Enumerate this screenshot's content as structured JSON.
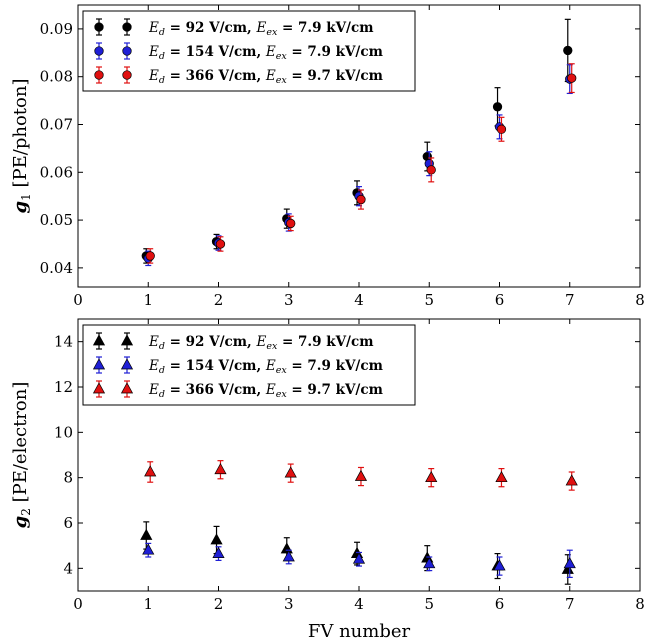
{
  "colors": {
    "series_0": "#000000",
    "series_1": "#1f1fd6",
    "series_2": "#e01010"
  },
  "chart_data": [
    {
      "type": "scatter",
      "title": "",
      "xlabel": "",
      "ylabel": "g1 [PE/photon]",
      "ylabel_parts": {
        "symbol": "g",
        "sub": "1",
        "rest": " [PE/photon]"
      },
      "xlim": [
        0,
        8
      ],
      "ylim": [
        0.036,
        0.095
      ],
      "xticks": [
        0,
        1,
        2,
        3,
        4,
        5,
        6,
        7,
        8
      ],
      "yticks": [
        0.04,
        0.05,
        0.06,
        0.07,
        0.08,
        0.09
      ],
      "ytick_labels": [
        "0.04",
        "0.05",
        "0.06",
        "0.07",
        "0.08",
        "0.09"
      ],
      "marker": "circle",
      "grid": false,
      "legend_position": "top-left",
      "x": [
        1,
        2,
        3,
        4,
        5,
        6,
        7
      ],
      "series": [
        {
          "name": "Ed = 92 V/cm, Eex = 7.9 kV/cm",
          "legend_parts": [
            "E",
            "d",
            " = 92 V/cm, ",
            "E",
            "ex",
            " = 7.9 kV/cm"
          ],
          "color": "#000000",
          "values": [
            0.0425,
            0.0455,
            0.0503,
            0.0557,
            0.0633,
            0.0737,
            0.0855
          ],
          "errors": [
            0.0015,
            0.0015,
            0.002,
            0.0025,
            0.003,
            0.004,
            0.0065
          ]
        },
        {
          "name": "Ed = 154 V/cm, Eex = 7.9 kV/cm",
          "legend_parts": [
            "E",
            "d",
            " = 154 V/cm, ",
            "E",
            "ex",
            " = 7.9 kV/cm"
          ],
          "color": "#1f1fd6",
          "values": [
            0.042,
            0.0452,
            0.0495,
            0.055,
            0.0618,
            0.0695,
            0.0795
          ],
          "errors": [
            0.0015,
            0.0015,
            0.0018,
            0.002,
            0.0025,
            0.0025,
            0.003
          ]
        },
        {
          "name": "Ed = 366 V/cm, Eex = 9.7 kV/cm",
          "legend_parts": [
            "E",
            "d",
            " = 366 V/cm, ",
            "E",
            "ex",
            " = 9.7 kV/cm"
          ],
          "color": "#e01010",
          "values": [
            0.0425,
            0.045,
            0.0493,
            0.0543,
            0.0605,
            0.069,
            0.0797
          ],
          "errors": [
            0.0015,
            0.0015,
            0.0015,
            0.002,
            0.0025,
            0.0025,
            0.003
          ]
        }
      ]
    },
    {
      "type": "scatter",
      "title": "",
      "xlabel": "FV number",
      "ylabel": "g2 [PE/electron]",
      "ylabel_parts": {
        "symbol": "g",
        "sub": "2",
        "rest": " [PE/electron]"
      },
      "xlim": [
        0,
        8
      ],
      "ylim": [
        3,
        15
      ],
      "xticks": [
        0,
        1,
        2,
        3,
        4,
        5,
        6,
        7,
        8
      ],
      "yticks": [
        4,
        6,
        8,
        10,
        12,
        14
      ],
      "ytick_labels": [
        "4",
        "6",
        "8",
        "10",
        "12",
        "14"
      ],
      "marker": "triangle",
      "grid": false,
      "legend_position": "top-left",
      "x": [
        1,
        2,
        3,
        4,
        5,
        6,
        7
      ],
      "series": [
        {
          "name": "Ed = 92 V/cm, Eex = 7.9 kV/cm",
          "legend_parts": [
            "E",
            "d",
            " = 92 V/cm, ",
            "E",
            "ex",
            " = 7.9 kV/cm"
          ],
          "color": "#000000",
          "values": [
            5.45,
            5.25,
            4.85,
            4.65,
            4.45,
            4.1,
            3.95
          ],
          "errors": [
            0.6,
            0.6,
            0.5,
            0.5,
            0.55,
            0.55,
            0.65
          ]
        },
        {
          "name": "Ed = 154 V/cm, Eex = 7.9 kV/cm",
          "legend_parts": [
            "E",
            "d",
            " = 154 V/cm, ",
            "E",
            "ex",
            " = 7.9 kV/cm"
          ],
          "color": "#1f1fd6",
          "values": [
            4.8,
            4.65,
            4.5,
            4.4,
            4.2,
            4.1,
            4.2
          ],
          "errors": [
            0.3,
            0.3,
            0.3,
            0.3,
            0.3,
            0.4,
            0.6
          ]
        },
        {
          "name": "Ed = 366 V/cm, Eex = 9.7 kV/cm",
          "legend_parts": [
            "E",
            "d",
            " = 366 V/cm, ",
            "E",
            "ex",
            " = 9.7 kV/cm"
          ],
          "color": "#e01010",
          "values": [
            8.25,
            8.35,
            8.2,
            8.05,
            8.0,
            8.0,
            7.85
          ],
          "errors": [
            0.45,
            0.4,
            0.4,
            0.4,
            0.4,
            0.4,
            0.4
          ]
        }
      ]
    }
  ]
}
